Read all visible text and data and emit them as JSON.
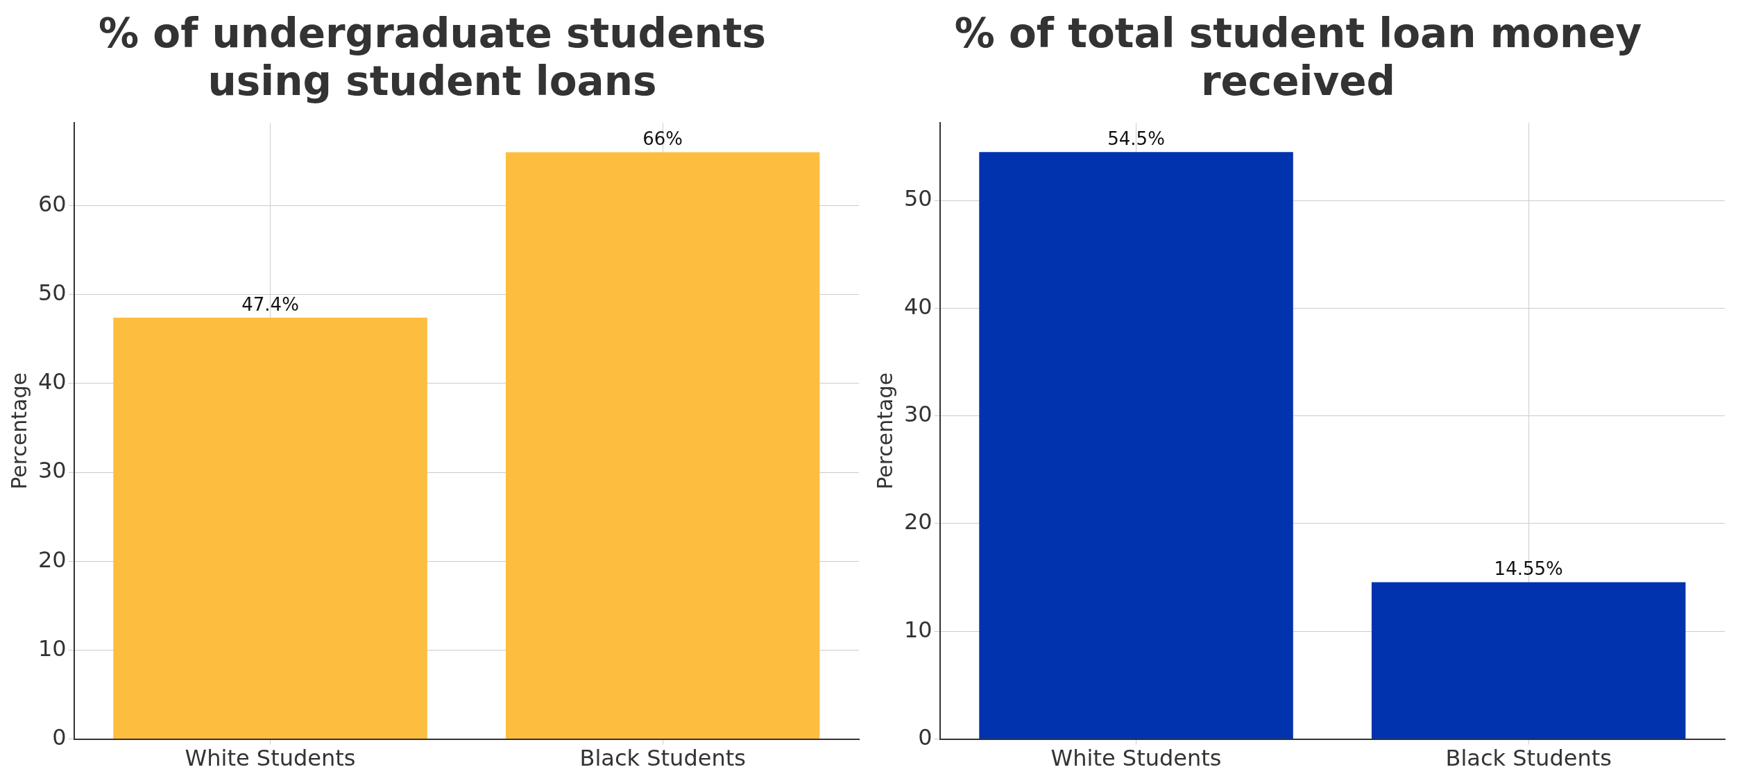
{
  "chart_data": [
    {
      "type": "bar",
      "title": "% of undergraduate students using student loans",
      "ylabel": "Percentage",
      "categories": [
        "White Students",
        "Black Students"
      ],
      "values": [
        47.4,
        66
      ],
      "color": "#fdbe3f",
      "value_labels": [
        "47.4%",
        "66%"
      ],
      "ylim": [
        0,
        69.3
      ],
      "yticks": [
        0,
        10,
        20,
        30,
        40,
        50,
        60
      ],
      "grid": true
    },
    {
      "type": "bar",
      "title": "% of total student loan money received",
      "ylabel": "Percentage",
      "categories": [
        "White Students",
        "Black Students"
      ],
      "values": [
        54.5,
        14.55
      ],
      "color": "#0033ad",
      "value_labels": [
        "54.5%",
        "14.55%"
      ],
      "ylim": [
        0,
        57.2
      ],
      "yticks": [
        0,
        10,
        20,
        30,
        40,
        50
      ],
      "grid": true
    }
  ]
}
